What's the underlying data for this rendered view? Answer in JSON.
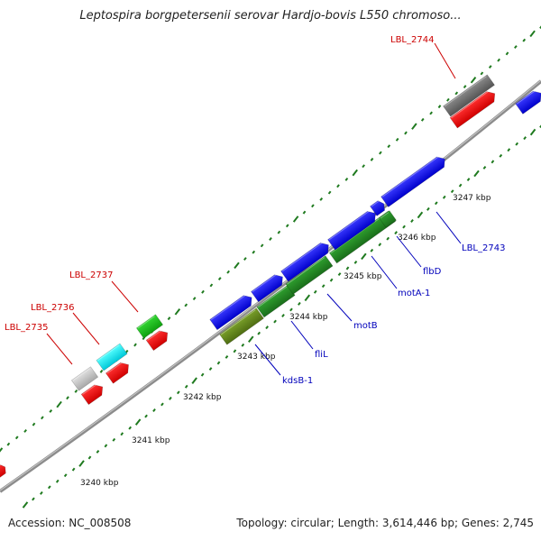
{
  "title": "Leptospira borgpetersenii serovar Hardjo-bovis L550 chromoso...",
  "footer": {
    "accession": "Accession: NC_008508",
    "summary": "Topology: circular; Length: 3,614,446 bp; Genes: 2,745"
  },
  "colors": {
    "backbone": "#8c8c8c",
    "tick": "#1f7a1f",
    "label_red": "#cc0000",
    "label_blue": "#0000bb",
    "ruler_text": "#111111"
  },
  "ruler": [
    "3240 kbp",
    "3241 kbp",
    "3242 kbp",
    "3243 kbp",
    "3244 kbp",
    "3245 kbp",
    "3246 kbp",
    "3247 kbp"
  ],
  "gene_labels": [
    {
      "id": "kdsB-1",
      "text": "kdsB-1"
    },
    {
      "id": "fliL",
      "text": "fliL"
    },
    {
      "id": "motB",
      "text": "motB"
    },
    {
      "id": "motA-1",
      "text": "motA-1"
    },
    {
      "id": "flbD",
      "text": "flbD"
    },
    {
      "id": "LBL_2743",
      "text": "LBL_2743"
    },
    {
      "id": "LBL_2744",
      "text": "LBL_2744"
    },
    {
      "id": "LBL_2737",
      "text": "LBL_2737"
    },
    {
      "id": "LBL_2736",
      "text": "LBL_2736"
    },
    {
      "id": "LBL_2735",
      "text": "LBL_2735"
    }
  ]
}
